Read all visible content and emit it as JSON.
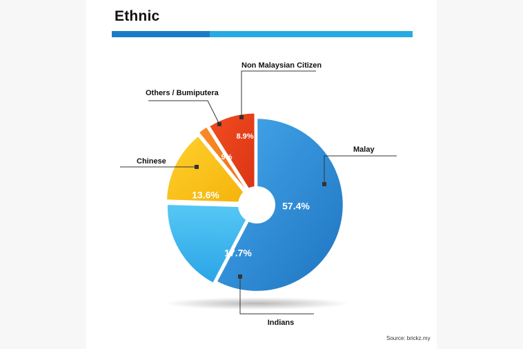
{
  "title": "Ethnic",
  "source": "Source: brickz.my",
  "colors": {
    "accent_dark": "#1a7cc7",
    "accent_light": "#27aae1",
    "malay": "#2e8fd8",
    "indians": "#3ab4ee",
    "chinese": "#ffc21a",
    "others": "#f57c1f",
    "non_citizen": "#e8401c"
  },
  "chart_data": {
    "type": "pie",
    "style": "exploded donut",
    "slices": [
      {
        "label": "Malay",
        "value": 57.4,
        "value_label": "57.4%",
        "color": "#2e8fd8"
      },
      {
        "label": "Indians",
        "value": 17.7,
        "value_label": "17.7%",
        "color": "#3ab4ee"
      },
      {
        "label": "Chinese",
        "value": 13.6,
        "value_label": "13.6%",
        "color": "#ffc21a"
      },
      {
        "label": "Others / Bumiputera",
        "value": 1.9,
        "value_label": "1.9%",
        "color": "#f57c1f"
      },
      {
        "label": "Non Malaysian Citizen",
        "value": 8.9,
        "value_label": "8.9%",
        "color": "#e8401c"
      }
    ]
  }
}
